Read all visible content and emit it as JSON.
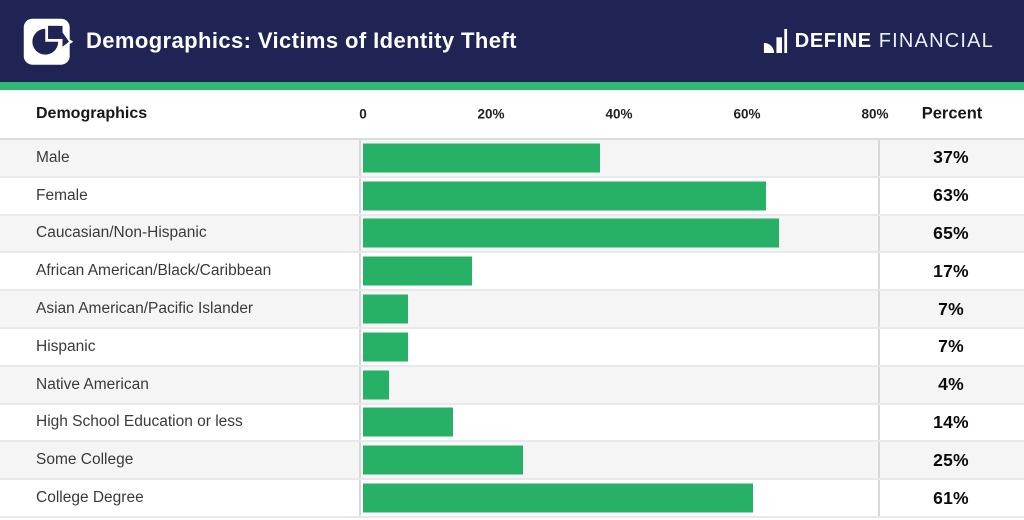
{
  "header": {
    "title": "Demographics: Victims of Identity Theft",
    "brand": {
      "bold": "DEFINE",
      "light": "FINANCIAL"
    }
  },
  "table": {
    "label_header": "Demographics",
    "value_header": "Percent"
  },
  "colors": {
    "navy": "#1F2454",
    "strip_green": "#2FB975",
    "bar_green": "#27B166",
    "row_alt": "#F5F5F6"
  },
  "chart_data": {
    "type": "bar",
    "orientation": "horizontal",
    "title": "Demographics: Victims of Identity Theft",
    "categories": [
      "Male",
      "Female",
      "Caucasian/Non-Hispanic",
      "African American/Black/Caribbean",
      "Asian American/Pacific Islander",
      "Hispanic",
      "Native American",
      "High School Education or less",
      "Some College",
      "College Degree"
    ],
    "values": [
      37,
      63,
      65,
      17,
      7,
      7,
      4,
      14,
      25,
      61
    ],
    "value_labels": [
      "37%",
      "63%",
      "65%",
      "17%",
      "7%",
      "7%",
      "4%",
      "14%",
      "25%",
      "61%"
    ],
    "xlabel": "Percent",
    "ylabel": "Demographics",
    "xlim": [
      0,
      80
    ],
    "grid": false,
    "legend": false,
    "axis_ticks": [
      {
        "label": "0",
        "pct": 0
      },
      {
        "label": "20%",
        "pct": 20
      },
      {
        "label": "40%",
        "pct": 40
      },
      {
        "label": "60%",
        "pct": 60
      },
      {
        "label": "80%",
        "pct": 80
      }
    ]
  }
}
